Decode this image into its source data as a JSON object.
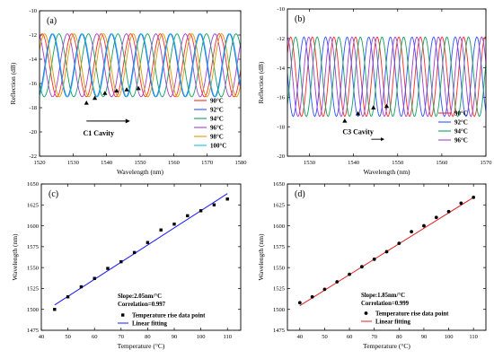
{
  "chart_data": [
    {
      "id": "a",
      "panel_label": "(a)",
      "type": "line",
      "xlabel": "Wavelength (nm)",
      "ylabel": "Reflection (dB)",
      "xlim": [
        1520,
        1580
      ],
      "ylim": [
        -22,
        -10
      ],
      "xticks": [
        1520,
        1530,
        1540,
        1550,
        1560,
        1570,
        1580
      ],
      "yticks": [
        -22,
        -20,
        -18,
        -16,
        -14,
        -12,
        -10
      ],
      "series": [
        {
          "name": "90°C",
          "color": "#ff2a2a",
          "mean": -14.5,
          "amp": 2.6,
          "period": 8.8,
          "min_at": 1534.0
        },
        {
          "name": "92°C",
          "color": "#3050ff",
          "mean": -14.5,
          "amp": 2.6,
          "period": 8.8,
          "min_at": 1537.0
        },
        {
          "name": "94°C",
          "color": "#10a060",
          "mean": -14.5,
          "amp": 2.6,
          "period": 8.8,
          "min_at": 1539.0
        },
        {
          "name": "96°C",
          "color": "#a040d0",
          "mean": -14.5,
          "amp": 2.6,
          "period": 8.8,
          "min_at": 1541.5
        },
        {
          "name": "98°C",
          "color": "#d89a00",
          "mean": -14.5,
          "amp": 2.6,
          "period": 8.8,
          "min_at": 1543.5
        },
        {
          "name": "100°C",
          "color": "#18c0d0",
          "mean": -14.5,
          "amp": 2.6,
          "period": 8.8,
          "min_at": 1546.0
        }
      ],
      "markers": [
        [
          1534,
          -17.6
        ],
        [
          1536.5,
          -17.2
        ],
        [
          1539.5,
          -16.8
        ],
        [
          1543,
          -16.6
        ],
        [
          1546,
          -16.5
        ],
        [
          1549.5,
          -16.4
        ]
      ],
      "annotation": "C1 Cavity"
    },
    {
      "id": "b",
      "panel_label": "(b)",
      "type": "line",
      "xlabel": "Wavelength (nm)",
      "ylabel": "Reflection (dB)",
      "xlim": [
        1525,
        1570
      ],
      "ylim": [
        -20,
        -10
      ],
      "xticks": [
        1530,
        1540,
        1550,
        1560,
        1570
      ],
      "yticks": [
        -20,
        -18,
        -16,
        -14,
        -12,
        -10
      ],
      "series": [
        {
          "name": "90°C",
          "color": "#ff2a2a",
          "mean": -14.6,
          "amp": 2.7,
          "period": 4.9,
          "min_at": 1538.0
        },
        {
          "name": "92°C",
          "color": "#3050ff",
          "mean": -14.6,
          "amp": 2.7,
          "period": 4.9,
          "min_at": 1541.0
        },
        {
          "name": "94°C",
          "color": "#10a060",
          "mean": -14.6,
          "amp": 2.7,
          "period": 4.9,
          "min_at": 1544.0
        },
        {
          "name": "96°C",
          "color": "#a040d0",
          "mean": -14.6,
          "amp": 2.7,
          "period": 4.9,
          "min_at": 1547.0
        }
      ],
      "markers": [
        [
          1538,
          -17.6
        ],
        [
          1541,
          -17.1
        ],
        [
          1544.5,
          -16.7
        ],
        [
          1547.5,
          -16.6
        ]
      ],
      "annotation": "C3 Cavity"
    },
    {
      "id": "c",
      "panel_label": "(c)",
      "type": "scatter",
      "xlabel": "Temperature (°C)",
      "ylabel": "Wavelength (nm)",
      "xlim": [
        40,
        115
      ],
      "ylim": [
        1475,
        1650
      ],
      "xticks": [
        40,
        50,
        60,
        70,
        80,
        90,
        100,
        110
      ],
      "yticks": [
        1475,
        1500,
        1525,
        1550,
        1575,
        1600,
        1625,
        1650
      ],
      "points_marker": "square",
      "x": [
        45,
        50,
        55,
        60,
        65,
        70,
        75,
        80,
        85,
        90,
        95,
        100,
        105,
        110
      ],
      "y": [
        1500,
        1515,
        1527,
        1537,
        1549,
        1557,
        1568,
        1580,
        1595,
        1602,
        1612,
        1618,
        1625,
        1632
      ],
      "fit": {
        "slope": 2.05,
        "intercept": 1413.0,
        "x_range": [
          45,
          110
        ],
        "color": "#1a1aff"
      },
      "annotation_lines": [
        "Slope:2.05nm/°C",
        "Correlation=0.997"
      ],
      "legend": [
        "Temperature rise data point",
        "Linear fitting"
      ]
    },
    {
      "id": "d",
      "panel_label": "(d)",
      "type": "scatter",
      "xlabel": "Temperature (°C)",
      "ylabel": "Wavelength (nm)",
      "xlim": [
        35,
        115
      ],
      "ylim": [
        1475,
        1650
      ],
      "xticks": [
        40,
        50,
        60,
        70,
        80,
        90,
        100,
        110
      ],
      "yticks": [
        1475,
        1500,
        1525,
        1550,
        1575,
        1600,
        1625,
        1650
      ],
      "points_marker": "circle",
      "x": [
        40,
        45,
        50,
        55,
        60,
        65,
        70,
        75,
        80,
        85,
        90,
        95,
        100,
        105,
        110
      ],
      "y": [
        1508,
        1515,
        1524,
        1533,
        1542,
        1551,
        1560,
        1569,
        1579,
        1593,
        1600,
        1610,
        1617,
        1627,
        1634
      ],
      "fit": {
        "slope": 1.85,
        "intercept": 1430.5,
        "x_range": [
          40,
          110
        ],
        "color": "#e02020"
      },
      "annotation_lines": [
        "Slope:1.85nm/°C",
        "Correlation=0.999"
      ],
      "legend": [
        "Temperature rise data point",
        "Linear fitting"
      ]
    }
  ]
}
